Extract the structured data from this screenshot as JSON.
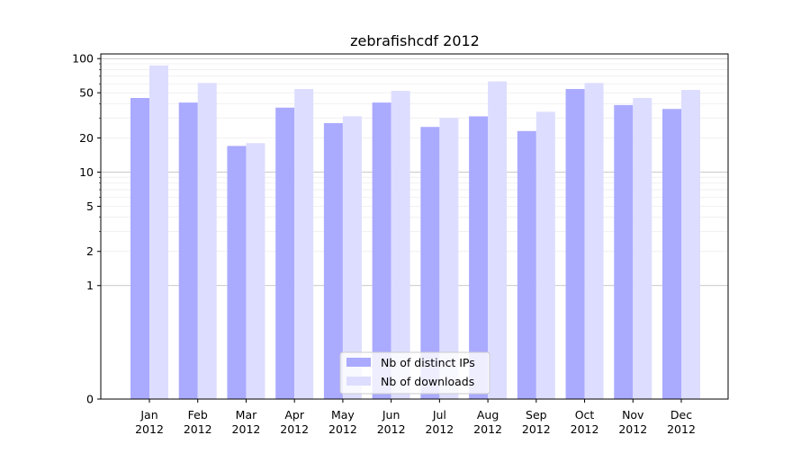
{
  "chart_data": {
    "type": "bar",
    "title": "zebrafishcdf 2012",
    "xlabel": "",
    "ylabel": "",
    "yscale": "symlog",
    "ylim": [
      0,
      110
    ],
    "yticks": [
      0,
      1,
      2,
      5,
      10,
      20,
      50,
      100
    ],
    "categories": [
      [
        "Jan",
        "2012"
      ],
      [
        "Feb",
        "2012"
      ],
      [
        "Mar",
        "2012"
      ],
      [
        "Apr",
        "2012"
      ],
      [
        "May",
        "2012"
      ],
      [
        "Jun",
        "2012"
      ],
      [
        "Jul",
        "2012"
      ],
      [
        "Aug",
        "2012"
      ],
      [
        "Sep",
        "2012"
      ],
      [
        "Oct",
        "2012"
      ],
      [
        "Nov",
        "2012"
      ],
      [
        "Dec",
        "2012"
      ]
    ],
    "series": [
      {
        "name": "Nb of distinct IPs",
        "color": "#aaaaff",
        "values": [
          45,
          41,
          17,
          37,
          27,
          41,
          25,
          31,
          23,
          54,
          39,
          36
        ]
      },
      {
        "name": "Nb of downloads",
        "color": "#ddddff",
        "values": [
          87,
          61,
          18,
          54,
          31,
          52,
          30,
          63,
          34,
          61,
          45,
          53
        ]
      }
    ],
    "grid": true,
    "legend_position": "bottom-center"
  }
}
